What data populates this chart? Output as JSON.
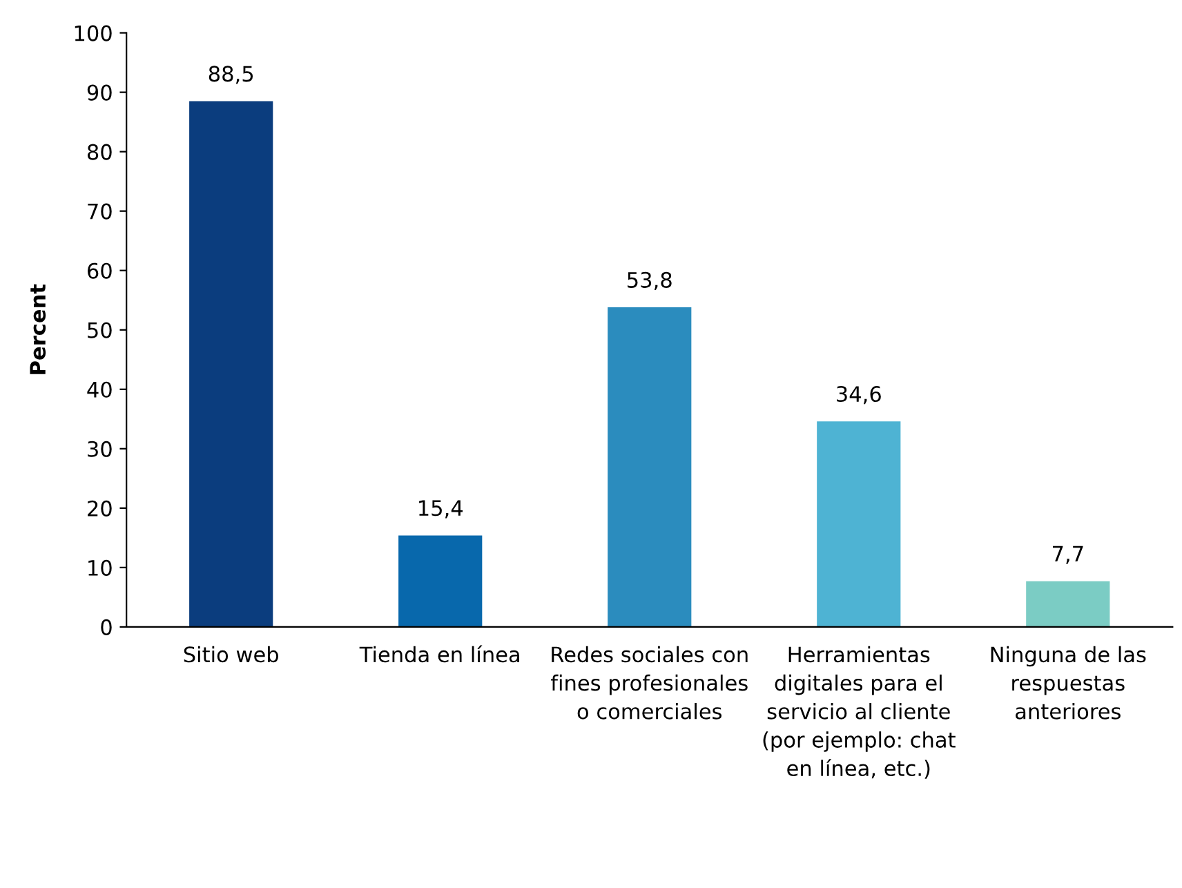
{
  "chart_data": {
    "type": "bar",
    "ylabel": "Percent",
    "categories": [
      "Sitio web",
      "Tienda en línea",
      "Redes sociales con fines profesionales o comerciales",
      "Herramientas digitales para el servicio al cliente (por ejemplo: chat en línea, etc.)",
      "Ninguna de las respuestas anteriores"
    ],
    "values": [
      88.5,
      15.4,
      53.8,
      34.6,
      7.7
    ],
    "colors": [
      "#0b3d7e",
      "#0868ac",
      "#2b8cbe",
      "#4eb3d3",
      "#7bccc4"
    ],
    "value_labels": [
      "88,5",
      "15,4",
      "53,8",
      "34,6",
      "7,7"
    ],
    "ylim": [
      0,
      100
    ],
    "yticks": [
      0,
      10,
      20,
      30,
      40,
      50,
      60,
      70,
      80,
      90,
      100
    ],
    "grid": false,
    "legend": false
  }
}
